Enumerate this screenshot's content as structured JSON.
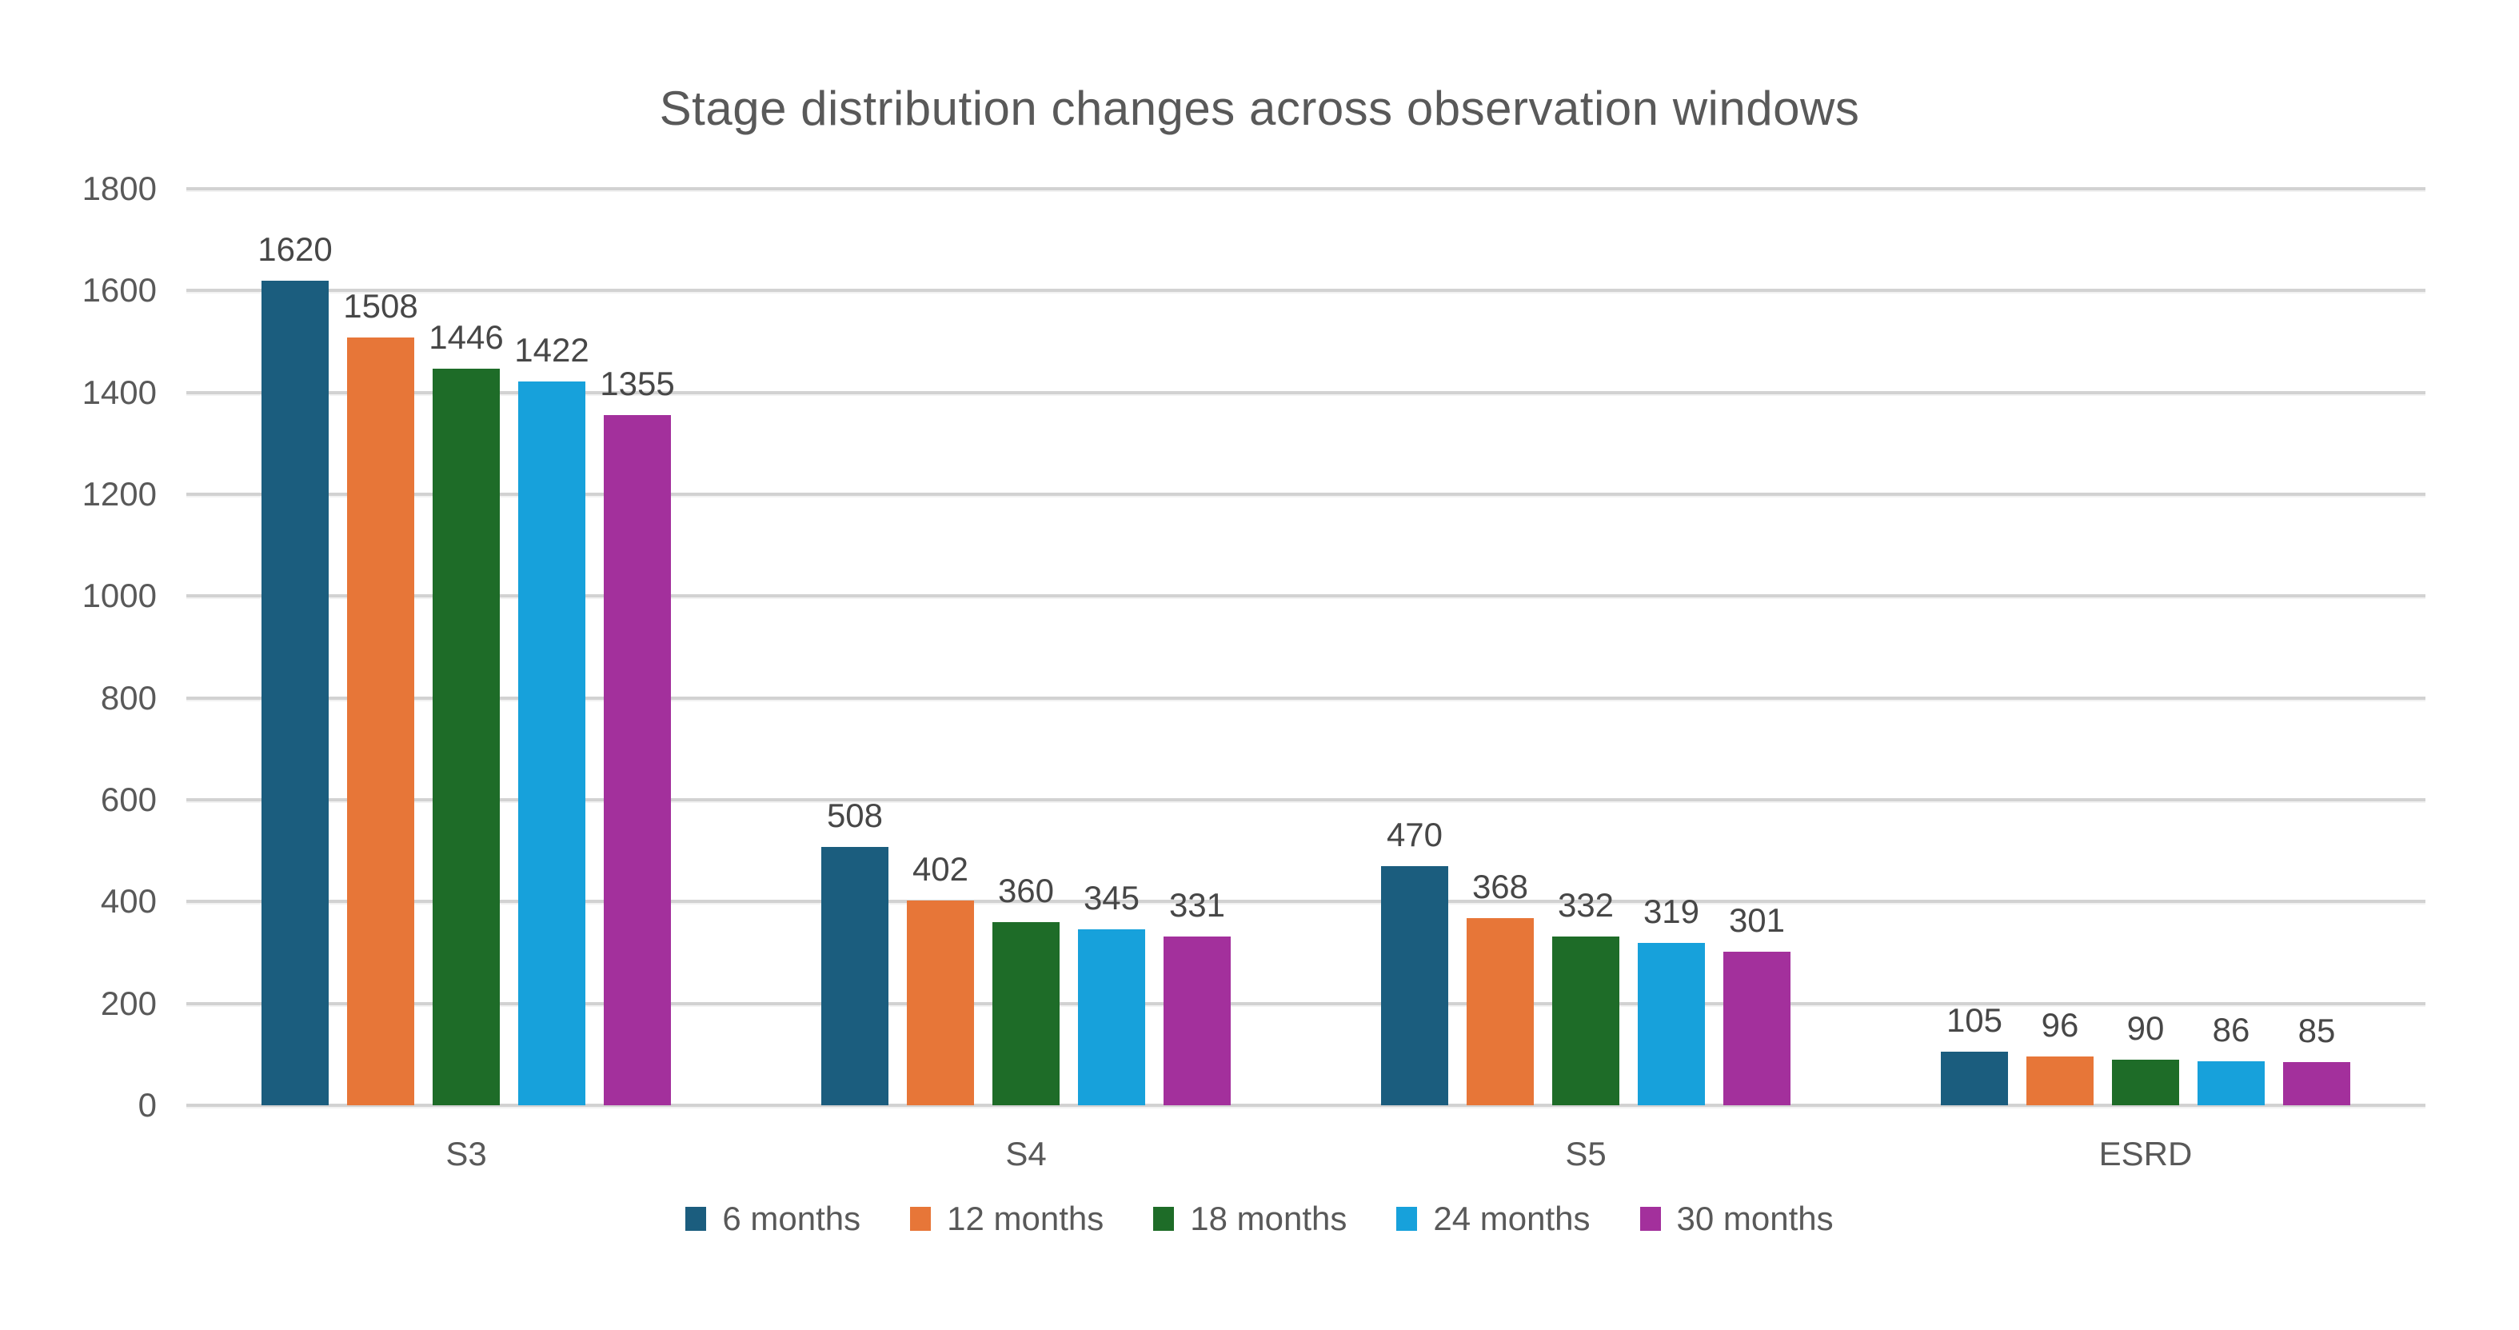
{
  "chart_data": {
    "type": "bar",
    "title": "Stage distribution changes across observation windows",
    "categories": [
      "S3",
      "S4",
      "S5",
      "ESRD"
    ],
    "series": [
      {
        "name": "6 months",
        "color": "#1b5d7e",
        "values": [
          1620,
          508,
          470,
          105
        ]
      },
      {
        "name": "12 months",
        "color": "#e77638",
        "values": [
          1508,
          402,
          368,
          96
        ]
      },
      {
        "name": "18 months",
        "color": "#1e6c28",
        "values": [
          1446,
          360,
          332,
          90
        ]
      },
      {
        "name": "24 months",
        "color": "#17a1db",
        "values": [
          1422,
          345,
          319,
          86
        ]
      },
      {
        "name": "30 months",
        "color": "#a3309c",
        "values": [
          1355,
          331,
          301,
          85
        ]
      }
    ],
    "xlabel": "",
    "ylabel": "",
    "ylim": [
      0,
      1800
    ],
    "y_ticks": [
      0,
      200,
      400,
      600,
      800,
      1000,
      1200,
      1400,
      1600,
      1800
    ],
    "grid": "horizontal",
    "legend_position": "bottom",
    "data_labels": true
  },
  "style": {
    "background": "#ffffff",
    "gridline_color": "#d2d2d2",
    "title_color": "#595959",
    "tick_color": "#595959",
    "data_label_color": "#474747",
    "category_color": "#595959",
    "legend_text_color": "#595959"
  }
}
